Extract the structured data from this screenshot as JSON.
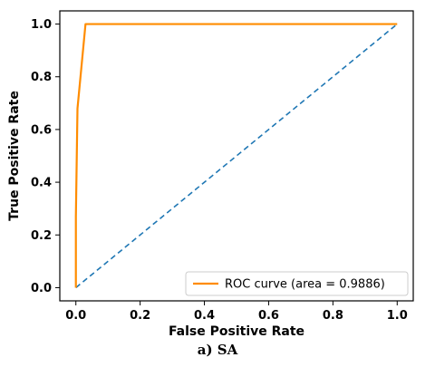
{
  "caption": "a) SA",
  "chart_data": {
    "type": "line",
    "xlabel": "False Positive Rate",
    "ylabel": "True Positive Rate",
    "xlim": [
      -0.05,
      1.05
    ],
    "ylim": [
      -0.05,
      1.05
    ],
    "xticks": [
      "0.0",
      "0.2",
      "0.4",
      "0.6",
      "0.8",
      "1.0"
    ],
    "yticks": [
      "0.0",
      "0.2",
      "0.4",
      "0.6",
      "0.8",
      "1.0"
    ],
    "grid": false,
    "legend_position": "bottom-right",
    "series": [
      {
        "name": "ROC curve (area = 0.9886)",
        "color": "#ff8c00",
        "style": "solid",
        "x": [
          0.0,
          0.0,
          0.005,
          0.03,
          1.0
        ],
        "y": [
          0.0,
          0.27,
          0.68,
          1.0,
          1.0
        ]
      },
      {
        "color": "#1f77b4",
        "style": "dashed",
        "x": [
          0.0,
          1.0
        ],
        "y": [
          0.0,
          1.0
        ]
      }
    ]
  }
}
